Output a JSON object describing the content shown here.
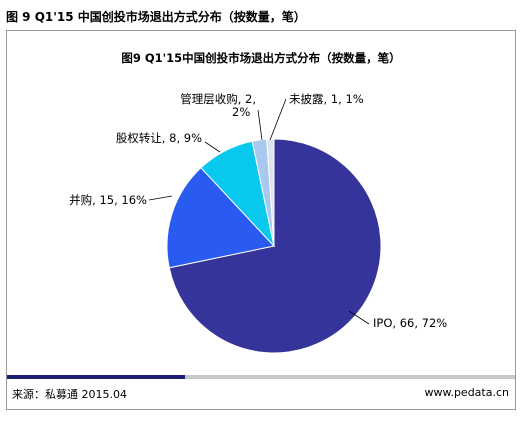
{
  "header": {
    "title": "图 9 Q1'15 中国创投市场退出方式分布（按数量，笔）"
  },
  "chart_data": {
    "type": "pie",
    "title": "图9 Q1'15中国创投市场退出方式分布（按数量，笔）",
    "slices": [
      {
        "name": "IPO",
        "value": 66,
        "percent": 72,
        "label": "IPO, 66, 72%",
        "color": "#34349a"
      },
      {
        "name": "并购",
        "value": 15,
        "percent": 16,
        "label": "并购, 15, 16%",
        "color": "#2a5bf0"
      },
      {
        "name": "股权转让",
        "value": 8,
        "percent": 9,
        "label": "股权转让, 8, 9%",
        "color": "#08c8ee"
      },
      {
        "name": "管理层收购",
        "value": 2,
        "percent": 2,
        "label_line1": "管理层收购, 2,",
        "label_line2": "2%",
        "color": "#a8c8ee"
      },
      {
        "name": "未披露",
        "value": 1,
        "percent": 1,
        "label": "未披露, 1, 1%",
        "color": "#dce3ec"
      }
    ]
  },
  "footer": {
    "source": "来源：私募通 2015.04",
    "site": "www.pedata.cn",
    "progress_fraction": 0.35
  }
}
